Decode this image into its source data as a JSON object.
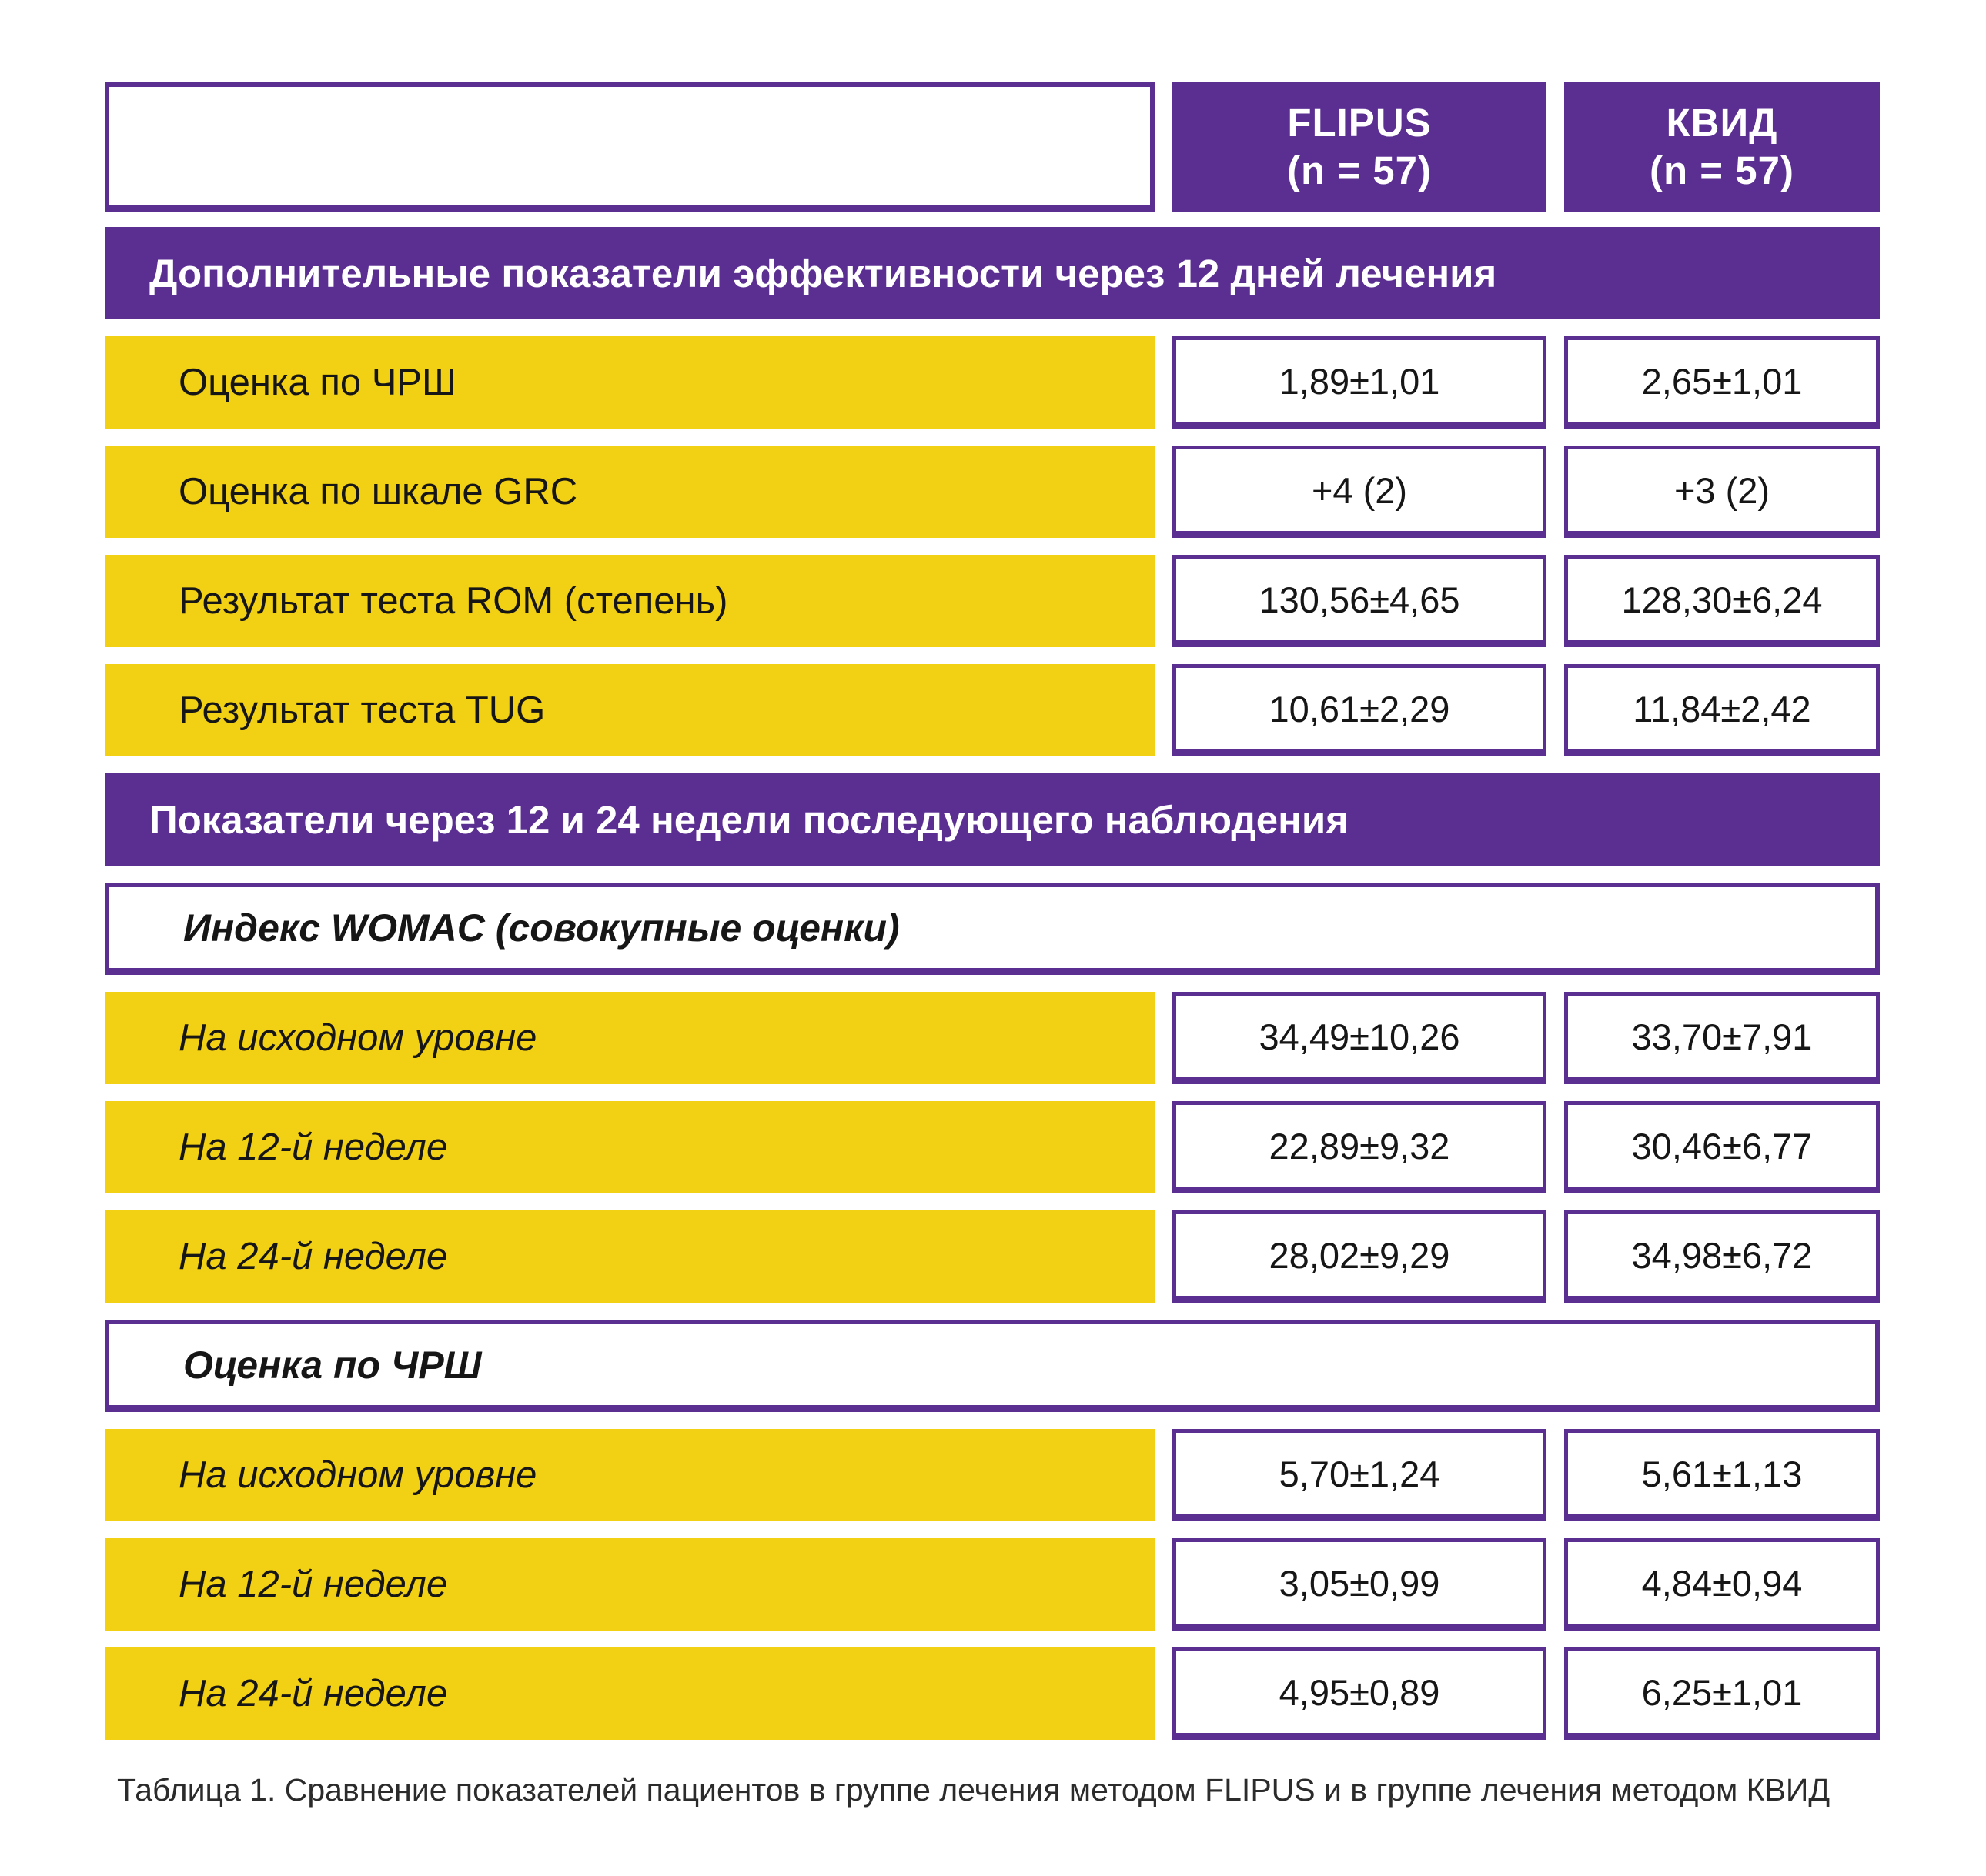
{
  "colors": {
    "accent_purple": "#5b2f91",
    "row_yellow": "#f2d013",
    "text_black": "#161616",
    "background": "#ffffff"
  },
  "table": {
    "columns": {
      "flipus": {
        "title": "FLIPUS",
        "n": "(n = 57)"
      },
      "kvid": {
        "title": "КВИД",
        "n": "(n = 57)"
      }
    },
    "sections": [
      {
        "header": "Дополнительные показатели эффективности через 12 дней лечения",
        "rows": [
          {
            "label": "Оценка по ЧРШ",
            "flipus": "1,89±1,01",
            "kvid": "2,65±1,01"
          },
          {
            "label": "Оценка по шкале GRC",
            "flipus": "+4 (2)",
            "kvid": "+3 (2)"
          },
          {
            "label": "Результат теста ROM (степень)",
            "flipus": "130,56±4,65",
            "kvid": "128,30±6,24"
          },
          {
            "label": "Результат теста TUG",
            "flipus": "10,61±2,29",
            "kvid": "11,84±2,42"
          }
        ]
      },
      {
        "header": "Показатели через 12 и 24 недели последующего наблюдения",
        "subsections": [
          {
            "title": "Индекс WOMAC (совокупные оценки)",
            "rows": [
              {
                "label": "На исходном уровне",
                "flipus": "34,49±10,26",
                "kvid": "33,70±7,91"
              },
              {
                "label": "На 12-й неделе",
                "flipus": "22,89±9,32",
                "kvid": "30,46±6,77"
              },
              {
                "label": "На 24-й неделе",
                "flipus": "28,02±9,29",
                "kvid": "34,98±6,72"
              }
            ]
          },
          {
            "title": "Оценка по ЧРШ",
            "rows": [
              {
                "label": "На исходном уровне",
                "flipus": "5,70±1,24",
                "kvid": "5,61±1,13"
              },
              {
                "label": "На 12-й неделе",
                "flipus": "3,05±0,99",
                "kvid": "4,84±0,94"
              },
              {
                "label": "На 24-й неделе",
                "flipus": "4,95±0,89",
                "kvid": "6,25±1,01"
              }
            ]
          }
        ]
      }
    ],
    "caption": "Таблица 1. Сравнение показателей пациентов в группе лечения методом FLIPUS и в группе лечения методом КВИД"
  }
}
